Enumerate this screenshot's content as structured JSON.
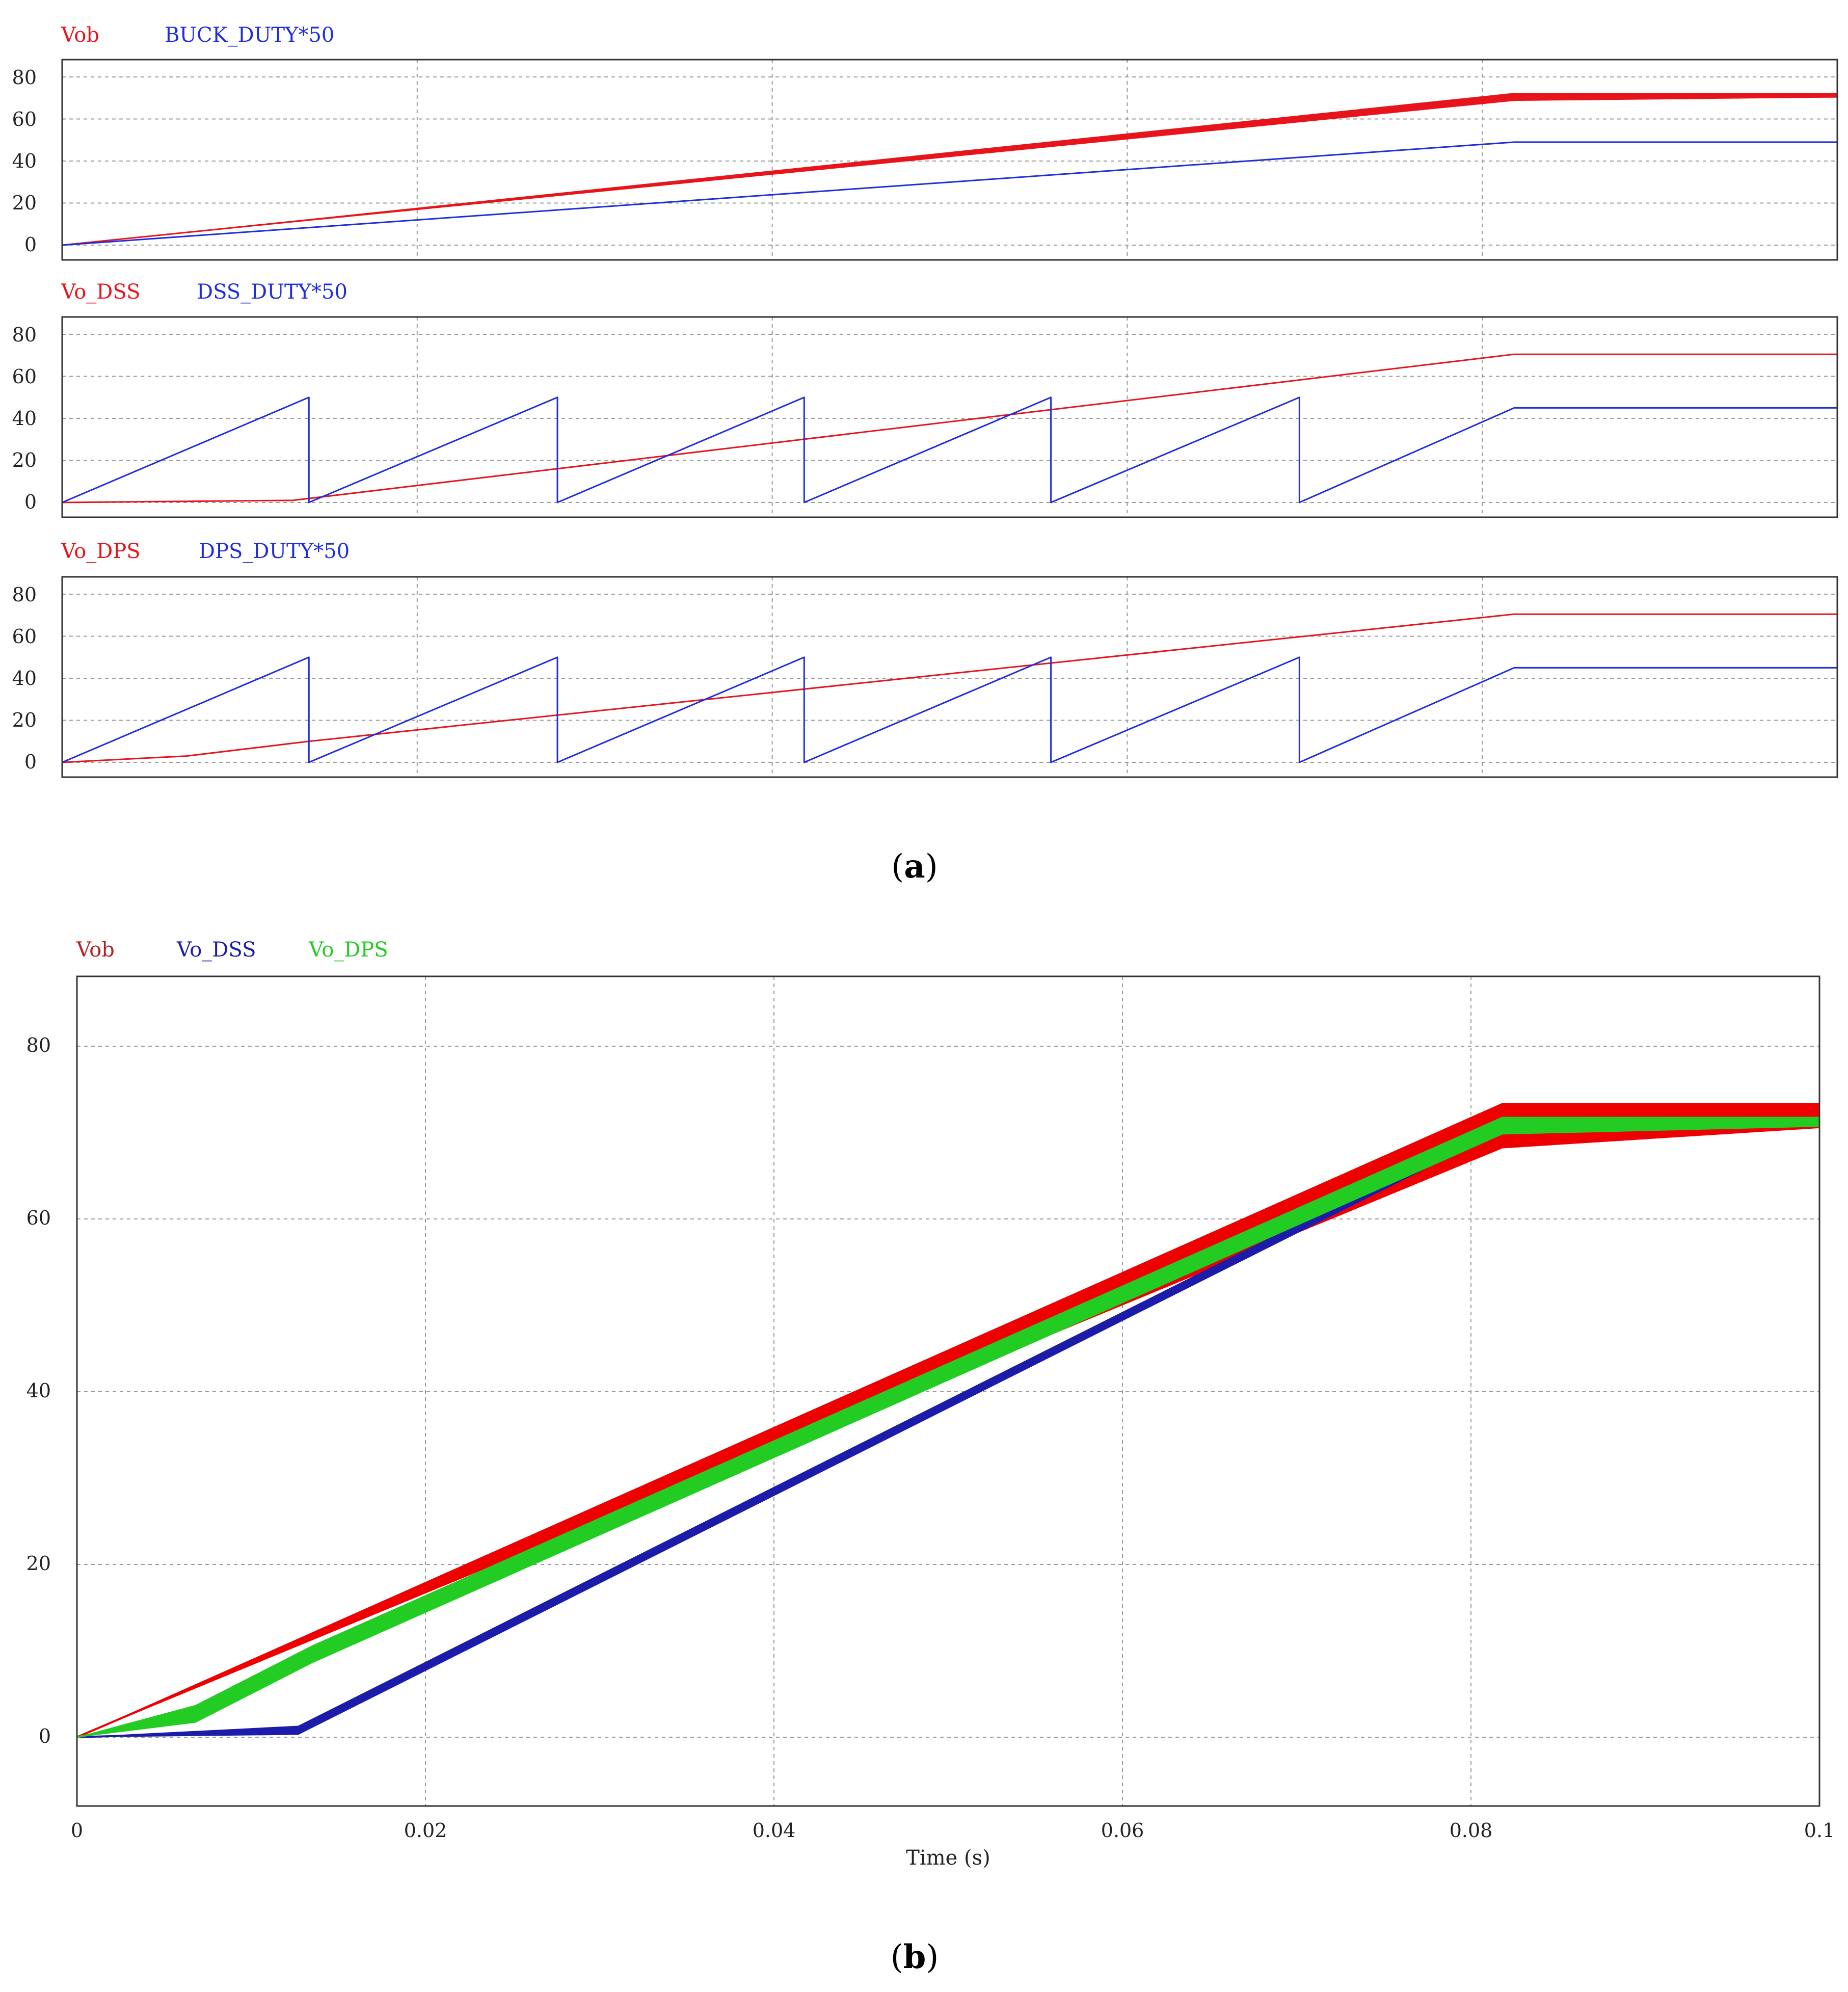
{
  "figure": {
    "caption_a": "a",
    "caption_b": "b"
  },
  "chart_data": [
    {
      "type": "line",
      "panel": "a-1",
      "ylim": [
        0,
        90
      ],
      "xlim": [
        0,
        0.1
      ],
      "y_ticks": [
        "80",
        "60",
        "40",
        "20",
        "0"
      ],
      "grid": true,
      "legend": "top-left",
      "series": [
        {
          "name": "Vob",
          "color": "#e8141b",
          "band": 1.8,
          "x": [
            0,
            0.0818,
            0.1
          ],
          "y": [
            0,
            70.5,
            70.5
          ]
        },
        {
          "name": "BUCK_DUTY*50",
          "color": "#1f2de0",
          "x": [
            0,
            0.0818,
            0.1
          ],
          "y": [
            0,
            49,
            49
          ]
        }
      ]
    },
    {
      "type": "line",
      "panel": "a-2",
      "ylim": [
        0,
        90
      ],
      "xlim": [
        0,
        0.1
      ],
      "y_ticks": [
        "80",
        "60",
        "40",
        "20",
        "0"
      ],
      "grid": true,
      "legend": "top-left",
      "series": [
        {
          "name": "Vo_DSS",
          "color": "#e8141b",
          "x": [
            0,
            0.013,
            0.0818,
            0.1
          ],
          "y": [
            0,
            1,
            70.5,
            70.5
          ]
        },
        {
          "name": "DSS_DUTY*50",
          "color": "#1f2de0",
          "x": [
            0,
            0.0139,
            0.0139,
            0.0279,
            0.0279,
            0.0418,
            0.0418,
            0.0557,
            0.0557,
            0.0697,
            0.0697,
            0.0818,
            0.1
          ],
          "y": [
            0,
            50,
            0,
            50,
            0,
            50,
            0,
            50,
            0,
            50,
            0,
            45,
            45
          ]
        }
      ]
    },
    {
      "type": "line",
      "panel": "a-3",
      "ylim": [
        0,
        90
      ],
      "xlim": [
        0,
        0.1
      ],
      "y_ticks": [
        "80",
        "60",
        "40",
        "20",
        "0"
      ],
      "grid": true,
      "legend": "top-left",
      "series": [
        {
          "name": "Vo_DPS",
          "color": "#e8141b",
          "x": [
            0,
            0.007,
            0.0139,
            0.0818,
            0.1
          ],
          "y": [
            0,
            3,
            10,
            70.5,
            70.5
          ]
        },
        {
          "name": "DPS_DUTY*50",
          "color": "#1f2de0",
          "x": [
            0,
            0.0139,
            0.0139,
            0.0279,
            0.0279,
            0.0418,
            0.0418,
            0.0557,
            0.0557,
            0.0697,
            0.0697,
            0.0818,
            0.1
          ],
          "y": [
            0,
            50,
            0,
            50,
            0,
            50,
            0,
            50,
            0,
            50,
            0,
            45,
            45
          ]
        }
      ]
    },
    {
      "type": "line",
      "panel": "b",
      "ylim": [
        -8,
        88
      ],
      "xlim": [
        0,
        0.1
      ],
      "y_ticks": [
        "80",
        "60",
        "40",
        "20",
        "0"
      ],
      "x_ticks": [
        "0",
        "0.02",
        "0.04",
        "0.06",
        "0.08",
        "0.1"
      ],
      "xlabel": "Time (s)",
      "ylabel": "",
      "grid": true,
      "legend": "top-left",
      "series": [
        {
          "name": "Vob",
          "color": "#ee0000",
          "band": 2.6,
          "x": [
            0,
            0.0818,
            0.1
          ],
          "y": [
            0,
            70.8,
            70.8
          ]
        },
        {
          "name": "Vo_DSS",
          "color": "#1c1caa",
          "band": 0.5,
          "x": [
            0,
            0.0127,
            0.0818,
            0.1
          ],
          "y": [
            0,
            0.8,
            70.8,
            70.8
          ]
        },
        {
          "name": "Vo_DPS",
          "color": "#22cc22",
          "band": 1.0,
          "x": [
            0,
            0.0068,
            0.0135,
            0.0818,
            0.1
          ],
          "y": [
            0,
            2.7,
            9.6,
            70.8,
            70.8
          ]
        }
      ]
    }
  ]
}
